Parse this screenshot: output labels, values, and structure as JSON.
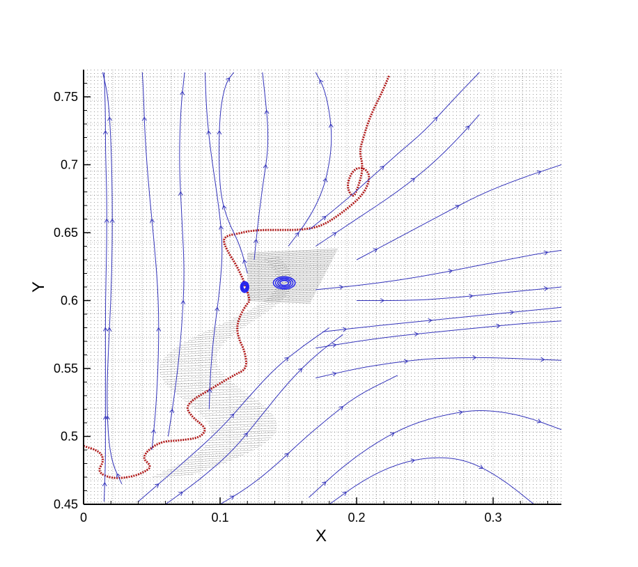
{
  "chart_data": {
    "type": "line",
    "title": "",
    "xlabel": "X",
    "ylabel": "Y",
    "xlim": [
      0,
      0.35
    ],
    "ylim": [
      0.45,
      0.77
    ],
    "xticks": [
      0,
      0.1,
      0.2,
      0.3
    ],
    "xtick_labels": [
      "0",
      "0.1",
      "0.2",
      "0.3"
    ],
    "yticks": [
      0.45,
      0.5,
      0.55,
      0.6,
      0.65,
      0.7,
      0.75
    ],
    "ytick_labels": [
      "0.45",
      "0.5",
      "0.55",
      "0.6",
      "0.65",
      "0.7",
      "0.75"
    ],
    "grid": false,
    "legend": "none",
    "colors": {
      "streamline": "#3333bb",
      "interface": "#b01818",
      "vortex": "#2222ee",
      "vector_field": "#000000"
    },
    "series": [
      {
        "kind": "interface",
        "color": "#b01818",
        "x": [
          0.0,
          0.012,
          0.015,
          0.01,
          0.02,
          0.035,
          0.045,
          0.05,
          0.042,
          0.055,
          0.07,
          0.085,
          0.09,
          0.085,
          0.08,
          0.075,
          0.08,
          0.09,
          0.1,
          0.11,
          0.12,
          0.118,
          0.114,
          0.112,
          0.115,
          0.12,
          0.122,
          0.118,
          0.112,
          0.105,
          0.102,
          0.106,
          0.112,
          0.12,
          0.13,
          0.145,
          0.16,
          0.175,
          0.19,
          0.205,
          0.21,
          0.207,
          0.2,
          0.195,
          0.193,
          0.197,
          0.2,
          0.205,
          0.202,
          0.205,
          0.208,
          0.212,
          0.218,
          0.224
        ],
        "y": [
          0.493,
          0.489,
          0.482,
          0.474,
          0.469,
          0.47,
          0.474,
          0.478,
          0.485,
          0.496,
          0.497,
          0.499,
          0.505,
          0.51,
          0.514,
          0.521,
          0.527,
          0.533,
          0.539,
          0.545,
          0.55,
          0.563,
          0.571,
          0.58,
          0.59,
          0.598,
          0.6,
          0.613,
          0.626,
          0.637,
          0.645,
          0.648,
          0.649,
          0.651,
          0.652,
          0.652,
          0.652,
          0.655,
          0.665,
          0.678,
          0.69,
          0.697,
          0.698,
          0.692,
          0.683,
          0.676,
          0.68,
          0.697,
          0.71,
          0.72,
          0.73,
          0.74,
          0.752,
          0.766
        ]
      },
      {
        "kind": "streamline",
        "color": "#3333bb",
        "x": [
          0.015,
          0.016,
          0.016,
          0.016,
          0.016,
          0.016,
          0.017,
          0.017,
          0.016,
          0.016,
          0.015
        ],
        "y": [
          0.452,
          0.48,
          0.5,
          0.53,
          0.56,
          0.6,
          0.64,
          0.68,
          0.71,
          0.74,
          0.768
        ]
      },
      {
        "kind": "streamline",
        "color": "#3333bb",
        "x": [
          0.028,
          0.021,
          0.018,
          0.017,
          0.018,
          0.02,
          0.021,
          0.021,
          0.02,
          0.018,
          0.014
        ],
        "y": [
          0.465,
          0.48,
          0.5,
          0.53,
          0.56,
          0.6,
          0.64,
          0.68,
          0.72,
          0.75,
          0.768
        ]
      },
      {
        "kind": "streamline",
        "color": "#3333bb",
        "x": [
          0.05,
          0.053,
          0.055,
          0.055,
          0.052,
          0.048,
          0.045,
          0.044,
          0.043
        ],
        "y": [
          0.49,
          0.52,
          0.56,
          0.6,
          0.64,
          0.68,
          0.72,
          0.75,
          0.768
        ]
      },
      {
        "kind": "streamline",
        "color": "#3333bb",
        "x": [
          0.062,
          0.068,
          0.072,
          0.074,
          0.072,
          0.07,
          0.071,
          0.074
        ],
        "y": [
          0.5,
          0.54,
          0.58,
          0.62,
          0.66,
          0.7,
          0.74,
          0.768
        ]
      },
      {
        "kind": "streamline",
        "color": "#3333bb",
        "x": [
          0.092,
          0.093,
          0.096,
          0.1,
          0.102,
          0.099,
          0.093,
          0.09,
          0.089
        ],
        "y": [
          0.52,
          0.55,
          0.58,
          0.61,
          0.64,
          0.67,
          0.71,
          0.74,
          0.768
        ]
      },
      {
        "kind": "streamline",
        "color": "#3333bb",
        "x": [
          0.12,
          0.115,
          0.105,
          0.1,
          0.099,
          0.1,
          0.104,
          0.11
        ],
        "y": [
          0.62,
          0.64,
          0.66,
          0.68,
          0.71,
          0.74,
          0.76,
          0.768
        ]
      },
      {
        "kind": "streamline",
        "color": "#3333bb",
        "x": [
          0.125,
          0.128,
          0.132,
          0.135,
          0.135,
          0.133,
          0.131
        ],
        "y": [
          0.63,
          0.66,
          0.69,
          0.71,
          0.73,
          0.75,
          0.768
        ]
      },
      {
        "kind": "streamline",
        "color": "#3333bb",
        "x": [
          0.15,
          0.165,
          0.175,
          0.18,
          0.182,
          0.18,
          0.176,
          0.17
        ],
        "y": [
          0.64,
          0.66,
          0.68,
          0.7,
          0.72,
          0.74,
          0.757,
          0.768
        ]
      },
      {
        "kind": "streamline",
        "color": "#3333bb",
        "x": [
          0.165,
          0.19,
          0.21,
          0.23,
          0.25,
          0.268,
          0.29
        ],
        "y": [
          0.652,
          0.672,
          0.69,
          0.708,
          0.725,
          0.745,
          0.768
        ]
      },
      {
        "kind": "streamline",
        "color": "#3333bb",
        "x": [
          0.17,
          0.2,
          0.23,
          0.255,
          0.275,
          0.29
        ],
        "y": [
          0.64,
          0.66,
          0.68,
          0.7,
          0.72,
          0.737
        ]
      },
      {
        "kind": "streamline",
        "color": "#3333bb",
        "x": [
          0.2,
          0.23,
          0.26,
          0.29,
          0.32,
          0.35
        ],
        "y": [
          0.63,
          0.646,
          0.662,
          0.678,
          0.69,
          0.7
        ]
      },
      {
        "kind": "streamline",
        "color": "#3333bb",
        "x": [
          0.17,
          0.21,
          0.25,
          0.29,
          0.33,
          0.35
        ],
        "y": [
          0.608,
          0.612,
          0.618,
          0.626,
          0.634,
          0.637
        ]
      },
      {
        "kind": "streamline",
        "color": "#3333bb",
        "x": [
          0.2,
          0.24,
          0.27,
          0.3,
          0.33,
          0.35
        ],
        "y": [
          0.6,
          0.6,
          0.602,
          0.605,
          0.608,
          0.61
        ]
      },
      {
        "kind": "streamline",
        "color": "#3333bb",
        "x": [
          0.175,
          0.21,
          0.24,
          0.27,
          0.3,
          0.33,
          0.35
        ],
        "y": [
          0.577,
          0.581,
          0.584,
          0.587,
          0.59,
          0.593,
          0.595
        ]
      },
      {
        "kind": "streamline",
        "color": "#3333bb",
        "x": [
          0.17,
          0.2,
          0.23,
          0.26,
          0.29,
          0.32,
          0.35
        ],
        "y": [
          0.565,
          0.57,
          0.574,
          0.577,
          0.58,
          0.583,
          0.585
        ]
      },
      {
        "kind": "streamline",
        "color": "#3333bb",
        "x": [
          0.17,
          0.2,
          0.225,
          0.25,
          0.275,
          0.3,
          0.325,
          0.35
        ],
        "y": [
          0.543,
          0.55,
          0.554,
          0.557,
          0.558,
          0.558,
          0.557,
          0.556
        ]
      },
      {
        "kind": "streamline",
        "color": "#3333bb",
        "x": [
          0.165,
          0.19,
          0.215,
          0.24,
          0.265,
          0.29,
          0.32,
          0.35
        ],
        "y": [
          0.455,
          0.478,
          0.496,
          0.509,
          0.516,
          0.52,
          0.516,
          0.505
        ]
      },
      {
        "kind": "streamline",
        "color": "#3333bb",
        "x": [
          0.18,
          0.205,
          0.23,
          0.255,
          0.28,
          0.305,
          0.33
        ],
        "y": [
          0.45,
          0.468,
          0.48,
          0.485,
          0.483,
          0.47,
          0.45
        ]
      },
      {
        "kind": "streamline",
        "color": "#3333bb",
        "x": [
          0.1,
          0.12,
          0.14,
          0.16,
          0.18,
          0.2,
          0.23
        ],
        "y": [
          0.45,
          0.462,
          0.478,
          0.497,
          0.514,
          0.53,
          0.545
        ]
      },
      {
        "kind": "streamline",
        "color": "#3333bb",
        "x": [
          0.06,
          0.085,
          0.11,
          0.13,
          0.15,
          0.17,
          0.19
        ],
        "y": [
          0.45,
          0.468,
          0.49,
          0.515,
          0.54,
          0.56,
          0.575
        ]
      },
      {
        "kind": "streamline",
        "color": "#3333bb",
        "x": [
          0.04,
          0.07,
          0.1,
          0.12,
          0.14,
          0.16,
          0.18
        ],
        "y": [
          0.452,
          0.478,
          0.505,
          0.528,
          0.55,
          0.566,
          0.58
        ]
      }
    ],
    "vortices": [
      {
        "cx": 0.147,
        "cy": 0.613,
        "rx": 0.008,
        "ry": 0.0045
      },
      {
        "cx": 0.118,
        "cy": 0.61,
        "rx": 0.003,
        "ry": 0.004
      }
    ]
  }
}
